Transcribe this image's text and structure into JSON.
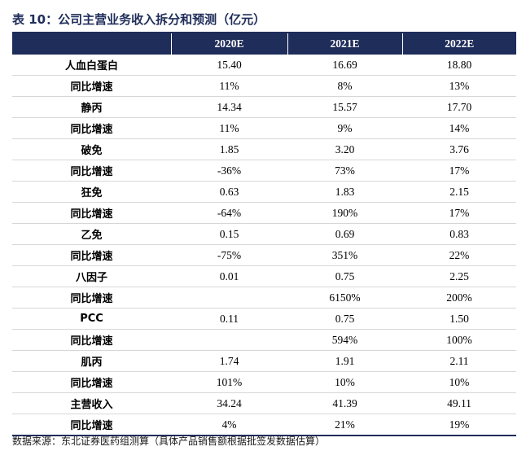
{
  "title": "表 10：公司主营业务收入拆分和预测（亿元）",
  "table": {
    "columns": [
      "",
      "2020E",
      "2021E",
      "2022E"
    ],
    "rows": [
      [
        "人血白蛋白",
        "15.40",
        "16.69",
        "18.80"
      ],
      [
        "同比增速",
        "11%",
        "8%",
        "13%"
      ],
      [
        "静丙",
        "14.34",
        "15.57",
        "17.70"
      ],
      [
        "同比增速",
        "11%",
        "9%",
        "14%"
      ],
      [
        "破免",
        "1.85",
        "3.20",
        "3.76"
      ],
      [
        "同比增速",
        "-36%",
        "73%",
        "17%"
      ],
      [
        "狂免",
        "0.63",
        "1.83",
        "2.15"
      ],
      [
        "同比增速",
        "-64%",
        "190%",
        "17%"
      ],
      [
        "乙免",
        "0.15",
        "0.69",
        "0.83"
      ],
      [
        "同比增速",
        "-75%",
        "351%",
        "22%"
      ],
      [
        "八因子",
        "0.01",
        "0.75",
        "2.25"
      ],
      [
        "同比增速",
        "",
        "6150%",
        "200%"
      ],
      [
        "PCC",
        "0.11",
        "0.75",
        "1.50"
      ],
      [
        "同比增速",
        "",
        "594%",
        "100%"
      ],
      [
        "肌丙",
        "1.74",
        "1.91",
        "2.11"
      ],
      [
        "同比增速",
        "101%",
        "10%",
        "10%"
      ],
      [
        "主营收入",
        "34.24",
        "41.39",
        "49.11"
      ],
      [
        "同比增速",
        "4%",
        "21%",
        "19%"
      ]
    ]
  },
  "source": "数据来源：东北证券医药组测算（具体产品销售额根据批签发数据估算）",
  "colors": {
    "header_bg": "#1f2d5a",
    "header_text": "#ffffff",
    "row_divider": "#d7d7d7"
  }
}
